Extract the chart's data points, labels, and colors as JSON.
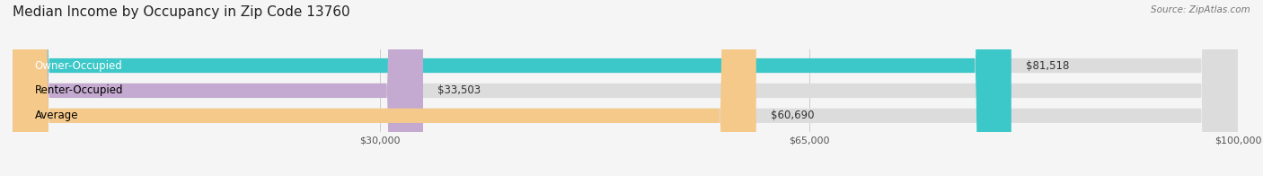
{
  "title": "Median Income by Occupancy in Zip Code 13760",
  "source": "Source: ZipAtlas.com",
  "categories": [
    "Owner-Occupied",
    "Renter-Occupied",
    "Average"
  ],
  "values": [
    81518,
    33503,
    60690
  ],
  "bar_colors": [
    "#3cc8c8",
    "#c4aad0",
    "#f5c98a"
  ],
  "value_labels": [
    "$81,518",
    "$33,503",
    "$60,690"
  ],
  "xlim": [
    0,
    100000
  ],
  "xtick_values": [
    30000,
    65000,
    100000
  ],
  "xtick_labels": [
    "$30,000",
    "$65,000",
    "$100,000"
  ],
  "title_fontsize": 11,
  "label_fontsize": 8.5,
  "bar_height": 0.58,
  "bg_color": "#f5f5f5",
  "bar_bg_color": "#dcdcdc",
  "text_colors": [
    "white",
    "black",
    "black"
  ]
}
